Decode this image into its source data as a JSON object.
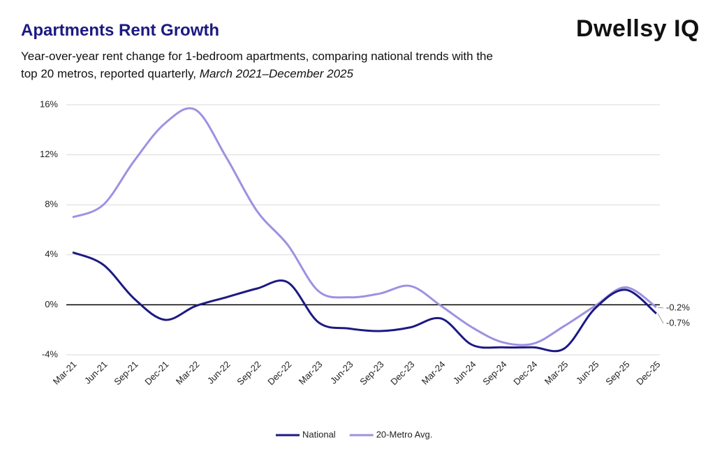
{
  "brand": "Dwellsy IQ",
  "chart_data": {
    "type": "line",
    "title": "Apartments Rent Growth",
    "subtitle": "Year-over-year rent change for 1-bedroom apartments, comparing national trends with the top 20 metros, reported quarterly,",
    "subtitle_period": "March 2021–December 2025",
    "categories": [
      "Mar-21",
      "Jun-21",
      "Sep-21",
      "Dec-21",
      "Mar-22",
      "Jun-22",
      "Sep-22",
      "Dec-22",
      "Mar-23",
      "Jun-23",
      "Sep-23",
      "Dec-23",
      "Mar-24",
      "Jun-24",
      "Sep-24",
      "Dec-24",
      "Mar-25",
      "Jun-25",
      "Sep-25",
      "Dec-25"
    ],
    "series": [
      {
        "name": "National",
        "color": "#1c1a82",
        "values": [
          4.2,
          3.2,
          0.5,
          -1.2,
          -0.1,
          0.6,
          1.3,
          1.8,
          -1.4,
          -1.9,
          -2.1,
          -1.8,
          -1.1,
          -3.2,
          -3.4,
          -3.4,
          -3.5,
          -0.3,
          1.2,
          -0.7
        ],
        "value_labels": [
          null,
          null,
          null,
          null,
          null,
          null,
          null,
          null,
          null,
          null,
          null,
          null,
          null,
          null,
          null,
          null,
          null,
          null,
          null,
          "-0.7%"
        ]
      },
      {
        "name": "20-Metro Avg.",
        "color": "#9d91e2",
        "values": [
          7.0,
          8.0,
          11.5,
          14.5,
          15.6,
          11.8,
          7.5,
          4.8,
          1.1,
          0.6,
          0.9,
          1.5,
          -0.1,
          -1.8,
          -3.0,
          -3.1,
          -1.7,
          -0.1,
          1.4,
          -0.2
        ],
        "value_labels": [
          null,
          null,
          null,
          null,
          null,
          null,
          null,
          null,
          null,
          null,
          null,
          null,
          null,
          null,
          null,
          null,
          null,
          null,
          null,
          "-0.2%"
        ]
      }
    ],
    "ylim": [
      -4,
      16
    ],
    "yticks": [
      {
        "value": -4,
        "label": "-4%"
      },
      {
        "value": 0,
        "label": "0%"
      },
      {
        "value": 4,
        "label": "4%"
      },
      {
        "value": 8,
        "label": "8%"
      },
      {
        "value": 12,
        "label": "12%"
      },
      {
        "value": 16,
        "label": "16%"
      }
    ],
    "grid": true,
    "legend": "bottom"
  }
}
